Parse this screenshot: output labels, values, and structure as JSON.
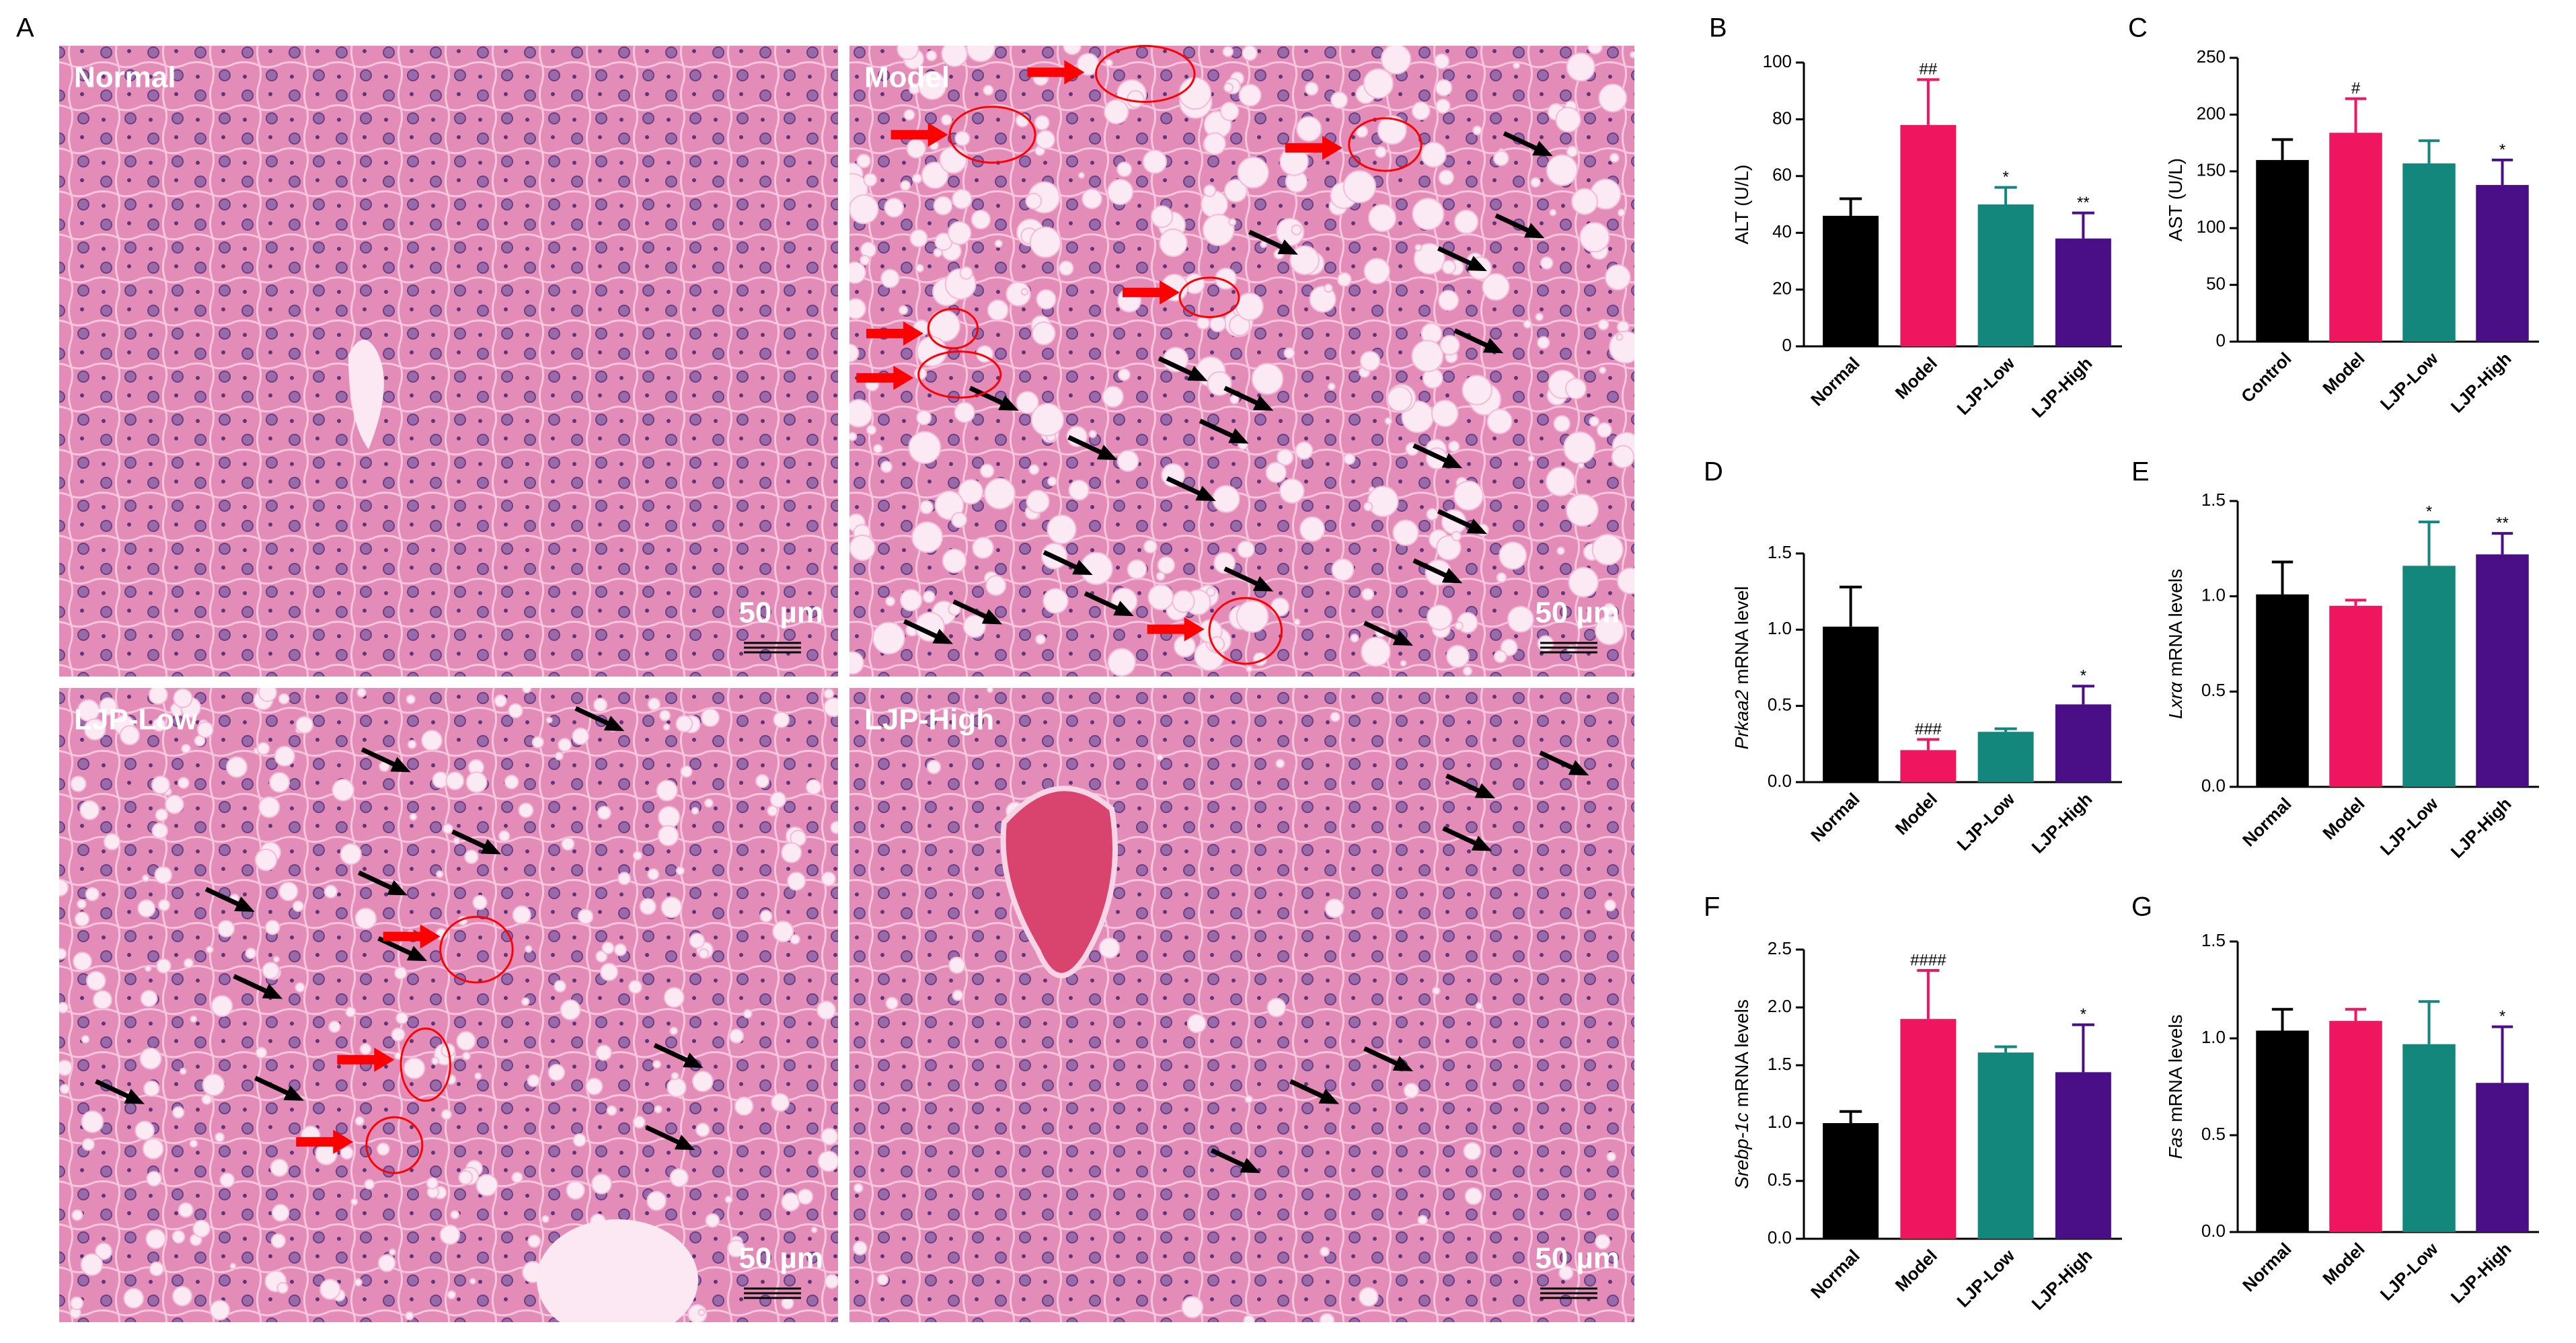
{
  "figure_label": "A",
  "histology": {
    "panels": [
      {
        "label": "Normal",
        "scale": "50 µm"
      },
      {
        "label": "Model",
        "scale": "50 µm"
      },
      {
        "label": "LJP-Low",
        "scale": "50 µm"
      },
      {
        "label": "LJP-High",
        "scale": "50 µm"
      }
    ]
  },
  "chart_data": [
    {
      "type": "bar",
      "panel": "B",
      "ylabel": {
        "text": "ALT (U/L)"
      },
      "categories": [
        "Normal",
        "Model",
        "LJP-Low",
        "LJP-High"
      ],
      "values": [
        46,
        78,
        50,
        38
      ],
      "errors": [
        6,
        16,
        6,
        9
      ],
      "annotations": [
        null,
        "##",
        "*",
        "**"
      ],
      "colors": [
        "#000000",
        "#f0155f",
        "#13877b",
        "#4a0e86"
      ],
      "ylim": [
        0,
        100
      ],
      "yticks": [
        0,
        20,
        40,
        60,
        80,
        100
      ]
    },
    {
      "type": "bar",
      "panel": "C",
      "ylabel": {
        "text": "AST (U/L)"
      },
      "categories": [
        "Control",
        "Model",
        "LJP-Low",
        "LJP-High"
      ],
      "values": [
        160,
        184,
        157,
        138
      ],
      "errors": [
        18,
        30,
        20,
        22
      ],
      "annotations": [
        null,
        "#",
        null,
        "*"
      ],
      "colors": [
        "#000000",
        "#f0155f",
        "#13877b",
        "#4a0e86"
      ],
      "ylim": [
        0,
        250
      ],
      "yticks": [
        0,
        50,
        100,
        150,
        200,
        250
      ]
    },
    {
      "type": "bar",
      "panel": "D",
      "ylabel": {
        "italic": "Prkaa2",
        "text": "mRNA level"
      },
      "categories": [
        "Normal",
        "Model",
        "LJP-Low",
        "LJP-High"
      ],
      "values": [
        1.02,
        0.21,
        0.33,
        0.51
      ],
      "errors": [
        0.26,
        0.07,
        0.02,
        0.12
      ],
      "annotations": [
        null,
        "###",
        null,
        "*"
      ],
      "colors": [
        "#000000",
        "#f0155f",
        "#13877b",
        "#4a0e86"
      ],
      "ylim": [
        0,
        1.5
      ],
      "yticks": [
        {
          "value": 0,
          "label": "0.0"
        },
        0.5,
        {
          "value": 1,
          "label": "1.0"
        },
        1.5
      ]
    },
    {
      "type": "bar",
      "panel": "E",
      "ylabel": {
        "italic": "Lxrα",
        "text": "mRNA levels"
      },
      "categories": [
        "Normal",
        "Model",
        "LJP-Low",
        "LJP-High"
      ],
      "values": [
        1.01,
        0.95,
        1.16,
        1.22
      ],
      "errors": [
        0.17,
        0.03,
        0.23,
        0.11
      ],
      "annotations": [
        null,
        null,
        "*",
        "**"
      ],
      "colors": [
        "#000000",
        "#f0155f",
        "#13877b",
        "#4a0e86"
      ],
      "ylim": [
        0,
        1.5
      ],
      "yticks": [
        {
          "value": 0,
          "label": "0.0"
        },
        0.5,
        {
          "value": 1,
          "label": "1.0"
        },
        1.5
      ]
    },
    {
      "type": "bar",
      "panel": "F",
      "ylabel": {
        "italic": "Srebp-1c",
        "text": "mRNA levels"
      },
      "categories": [
        "Normal",
        "Model",
        "LJP-Low",
        "LJP-High"
      ],
      "values": [
        1.0,
        1.9,
        1.61,
        1.44
      ],
      "errors": [
        0.1,
        0.42,
        0.05,
        0.41
      ],
      "annotations": [
        null,
        "####",
        null,
        "*"
      ],
      "colors": [
        "#000000",
        "#f0155f",
        "#13877b",
        "#4a0e86"
      ],
      "ylim": [
        0,
        2.5
      ],
      "yticks": [
        {
          "value": 0,
          "label": "0.0"
        },
        0.5,
        {
          "value": 1,
          "label": "1.0"
        },
        1.5,
        {
          "value": 2,
          "label": "2.0"
        },
        2.5
      ]
    },
    {
      "type": "bar",
      "panel": "G",
      "ylabel": {
        "italic": "Fas",
        "text": "mRNA levels"
      },
      "categories": [
        "Normal",
        "Model",
        "LJP-Low",
        "LJP-High"
      ],
      "values": [
        1.04,
        1.09,
        0.97,
        0.77
      ],
      "errors": [
        0.11,
        0.06,
        0.22,
        0.29
      ],
      "annotations": [
        null,
        null,
        null,
        "*"
      ],
      "colors": [
        "#000000",
        "#f0155f",
        "#13877b",
        "#4a0e86"
      ],
      "ylim": [
        0,
        1.5
      ],
      "yticks": [
        {
          "value": 0,
          "label": "0.0"
        },
        0.5,
        {
          "value": 1,
          "label": "1.0"
        },
        1.5
      ]
    }
  ]
}
